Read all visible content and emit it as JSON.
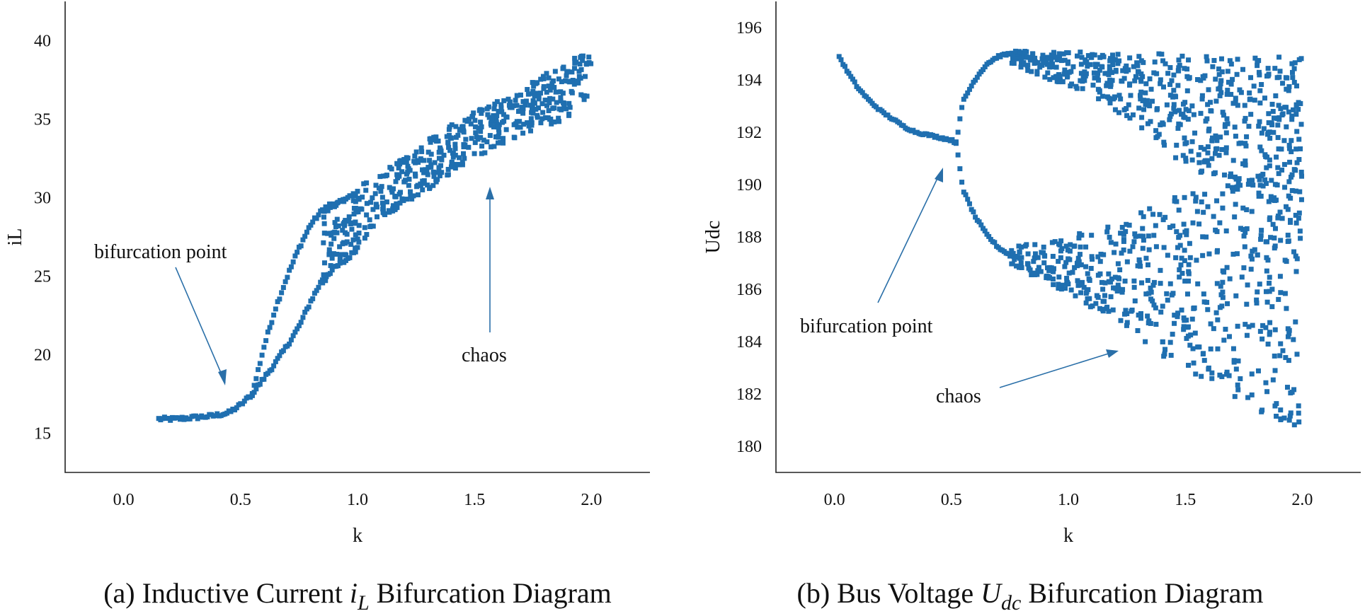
{
  "colors": {
    "series": "#1f6fb0",
    "axis": "#222222",
    "arrow": "#2a6fa8"
  },
  "panels": [
    {
      "caption": {
        "prefix": "(a) Inductive Current ",
        "var": "i",
        "sub": "L",
        "suffix": " Bifurcation Diagram"
      },
      "annotations": {
        "bifurcation": "bifurcation point",
        "chaos": "chaos"
      }
    },
    {
      "caption": {
        "prefix": "(b) Bus Voltage ",
        "var": "U",
        "sub": "dc",
        "suffix": " Bifurcation Diagram"
      },
      "annotations": {
        "bifurcation": "bifurcation point",
        "chaos": "chaos"
      }
    }
  ],
  "chart_data": [
    {
      "type": "scatter",
      "title": "",
      "xlabel": "k",
      "ylabel": "iL",
      "xlim": [
        -0.25,
        2.25
      ],
      "ylim": [
        12.5,
        42.5
      ],
      "xticks": [
        "0.0",
        "0.5",
        "1.0",
        "1.5",
        "2.0"
      ],
      "yticks": [
        "15",
        "20",
        "25",
        "30",
        "35",
        "40"
      ],
      "grid": false,
      "legend": "none",
      "bifurcation_k": 0.55,
      "series": [
        {
          "x": [
            0.15,
            0.22,
            0.3,
            0.38,
            0.45,
            0.5,
            0.55
          ],
          "y": [
            15.9,
            15.9,
            16.0,
            16.1,
            16.3,
            16.8,
            17.5
          ],
          "kind": "branch"
        },
        {
          "x": [
            0.55,
            0.6,
            0.65,
            0.7,
            0.75,
            0.8,
            0.85,
            0.9,
            0.95,
            1.0
          ],
          "y": [
            17.5,
            20.5,
            23.0,
            25.0,
            26.8,
            28.3,
            29.2,
            29.5,
            29.9,
            30.3
          ],
          "kind": "upper-branch"
        },
        {
          "x": [
            0.55,
            0.6,
            0.65,
            0.7,
            0.75,
            0.8,
            0.85,
            0.9,
            0.95,
            1.0
          ],
          "y": [
            17.5,
            18.5,
            19.5,
            20.6,
            21.8,
            23.4,
            24.8,
            25.5,
            26.0,
            26.8
          ],
          "kind": "lower-branch"
        },
        {
          "x": [
            0.85,
            1.1,
            1.3,
            1.5,
            1.7,
            1.9,
            2.0
          ],
          "ylow": [
            24.5,
            28.5,
            30.5,
            32.5,
            34.0,
            35.0,
            35.8
          ],
          "yhigh": [
            29.5,
            31.5,
            33.8,
            35.5,
            37.0,
            38.8,
            39.4
          ],
          "kind": "chaos-band"
        }
      ]
    },
    {
      "type": "scatter",
      "title": "",
      "xlabel": "k",
      "ylabel": "Udc",
      "xlim": [
        -0.25,
        2.25
      ],
      "ylim": [
        179,
        197
      ],
      "xticks": [
        "0.0",
        "0.5",
        "1.0",
        "1.5",
        "2.0"
      ],
      "yticks": [
        "180",
        "182",
        "184",
        "186",
        "188",
        "190",
        "192",
        "194",
        "196"
      ],
      "grid": false,
      "legend": "none",
      "bifurcation_k": 0.52,
      "series": [
        {
          "x": [
            0.02,
            0.05,
            0.1,
            0.15,
            0.2,
            0.25,
            0.3,
            0.35,
            0.4,
            0.45,
            0.5,
            0.52
          ],
          "y": [
            194.9,
            194.4,
            193.7,
            193.2,
            192.8,
            192.5,
            192.2,
            192.0,
            191.9,
            191.8,
            191.7,
            191.6
          ],
          "kind": "branch"
        },
        {
          "x": [
            0.52,
            0.55,
            0.6,
            0.65,
            0.7,
            0.75,
            0.8
          ],
          "y": [
            191.6,
            193.2,
            194.0,
            194.6,
            194.9,
            195.0,
            195.0
          ],
          "kind": "upper-branch"
        },
        {
          "x": [
            0.52,
            0.55,
            0.6,
            0.65,
            0.7,
            0.75,
            0.8
          ],
          "y": [
            191.6,
            189.8,
            188.8,
            188.1,
            187.6,
            187.3,
            187.2
          ],
          "kind": "lower-branch"
        },
        {
          "x": [
            0.75,
            1.0,
            1.25,
            1.5,
            1.75,
            2.0
          ],
          "upper_top": [
            195.1,
            195.1,
            195.0,
            195.0,
            194.9,
            194.9
          ],
          "upper_bottom": [
            194.6,
            193.7,
            192.6,
            190.7,
            189.5,
            189.0
          ],
          "lower_top": [
            187.6,
            188.0,
            188.7,
            189.7,
            190.5,
            191.0
          ],
          "lower_bottom": [
            186.8,
            185.8,
            184.5,
            182.8,
            181.6,
            180.6
          ],
          "kind": "chaos-bands"
        }
      ]
    }
  ]
}
